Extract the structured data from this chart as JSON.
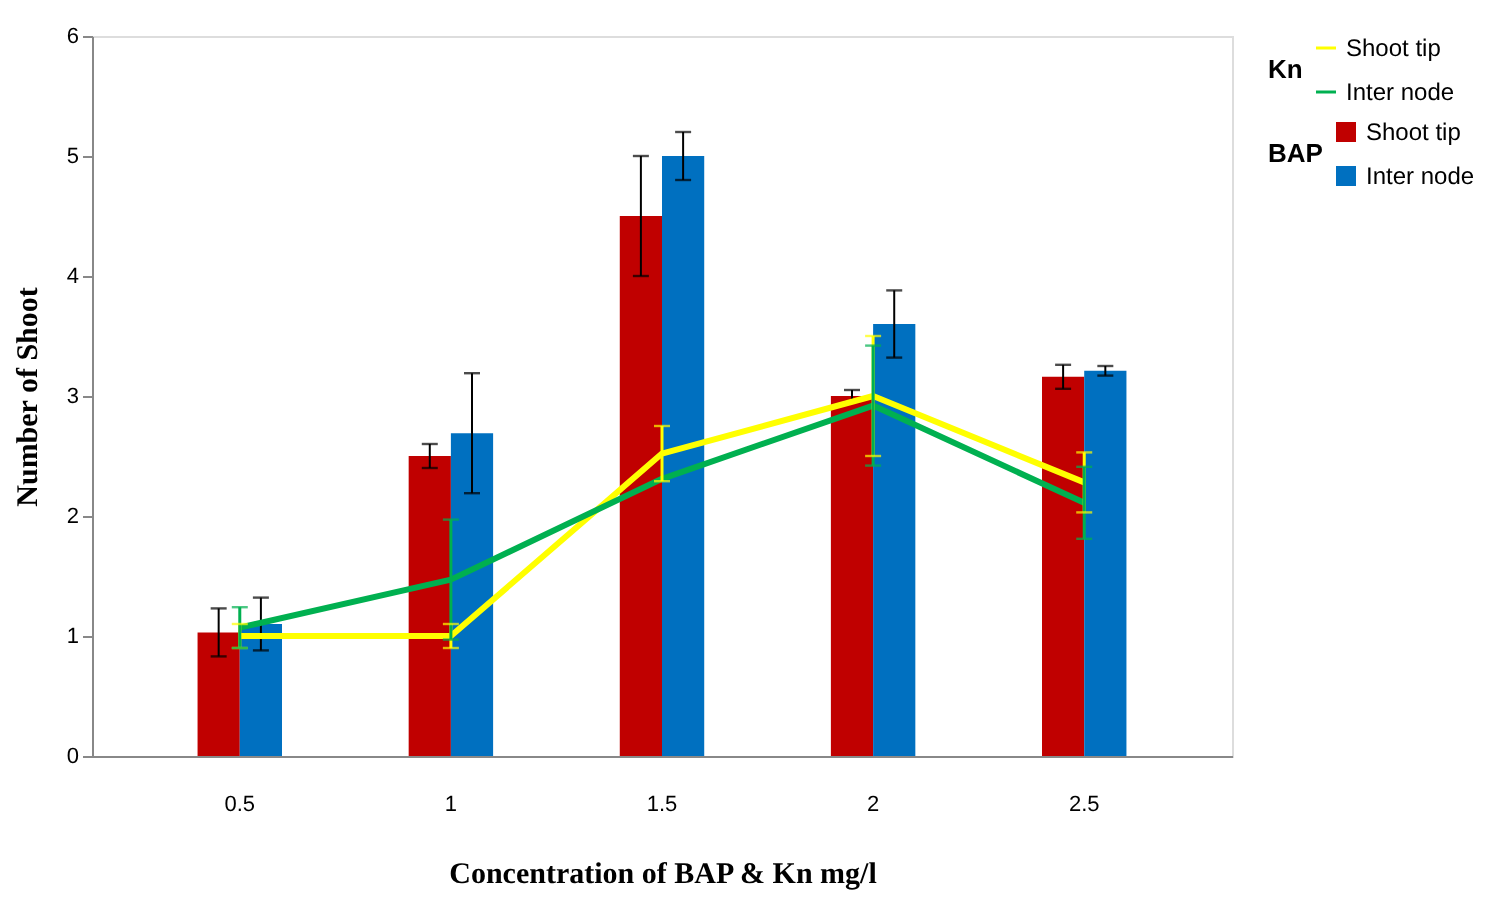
{
  "chart_data": {
    "type": "bar",
    "xlabel": "Concentration of BAP & Kn mg/l",
    "ylabel": "Number of Shoot",
    "categories": [
      "0.5",
      "1",
      "1.5",
      "2",
      "2.5"
    ],
    "series": [
      {
        "name": "Shoot tip",
        "color": "#c00000",
        "values": [
          1.03,
          2.5,
          4.5,
          3.0,
          3.16
        ],
        "errors": [
          0.2,
          0.1,
          0.5,
          0.05,
          0.1
        ]
      },
      {
        "name": "Inter node",
        "color": "#0070c0",
        "values": [
          1.1,
          2.69,
          5.0,
          3.6,
          3.21
        ],
        "errors": [
          0.22,
          0.5,
          0.2,
          0.28,
          0.04
        ]
      },
      {
        "name": "Shoot tip",
        "type": "line",
        "color": "#ffff00",
        "values": [
          1.0,
          1.0,
          2.52,
          3.0,
          2.28
        ],
        "errors": [
          0.1,
          0.1,
          0.23,
          0.5,
          0.25
        ]
      },
      {
        "name": "Inter node",
        "type": "line",
        "color": "#00b050",
        "values": [
          1.07,
          1.47,
          2.31,
          2.92,
          2.11
        ],
        "errors": [
          0.17,
          0.5,
          null,
          0.5,
          0.3
        ]
      }
    ],
    "annotations": [
      "BAP",
      "Kn"
    ],
    "ylim": [
      0,
      6
    ],
    "yticks": [
      0,
      1,
      2,
      3,
      4,
      5,
      6
    ],
    "grid": false,
    "legend": "right",
    "marker": "none"
  }
}
